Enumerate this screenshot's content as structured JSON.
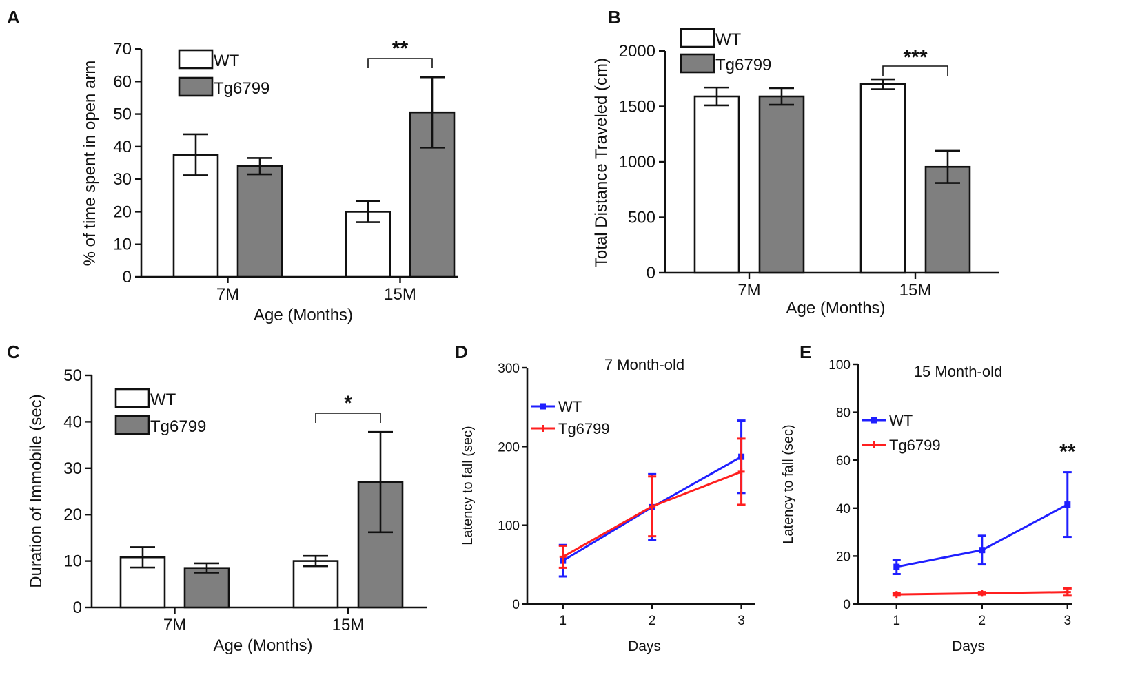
{
  "chart_data": [
    {
      "panel": "A",
      "type": "bar",
      "categories": [
        "7M",
        "15M"
      ],
      "series": [
        {
          "name": "WT",
          "values": [
            37.5,
            20
          ],
          "errors": [
            6.3,
            3.2
          ],
          "color": "#ffffff"
        },
        {
          "name": "Tg6799",
          "values": [
            34,
            50.5
          ],
          "errors": [
            2.5,
            10.8
          ],
          "color": "#7f7f7f"
        }
      ],
      "ylabel": "% of time spent in open arm",
      "xlabel": "Age (Months)",
      "ylim": [
        0,
        70
      ],
      "yticks": [
        0,
        10,
        20,
        30,
        40,
        50,
        60,
        70
      ],
      "significance": [
        {
          "category": "15M",
          "label": "**"
        }
      ]
    },
    {
      "panel": "B",
      "type": "bar",
      "categories": [
        "7M",
        "15M"
      ],
      "series": [
        {
          "name": "WT",
          "values": [
            1590,
            1700
          ],
          "errors": [
            80,
            45
          ],
          "color": "#ffffff"
        },
        {
          "name": "Tg6799",
          "values": [
            1590,
            955
          ],
          "errors": [
            75,
            145
          ],
          "color": "#7f7f7f"
        }
      ],
      "ylabel": "Total Distance Traveled (cm)",
      "xlabel": "Age (Months)",
      "ylim": [
        0,
        2000
      ],
      "yticks": [
        0,
        500,
        1000,
        1500,
        2000
      ],
      "significance": [
        {
          "category": "15M",
          "label": "***"
        }
      ]
    },
    {
      "panel": "C",
      "type": "bar",
      "categories": [
        "7M",
        "15M"
      ],
      "series": [
        {
          "name": "WT",
          "values": [
            10.8,
            10
          ],
          "errors": [
            2.2,
            1.1
          ],
          "color": "#ffffff"
        },
        {
          "name": "Tg6799",
          "values": [
            8.5,
            27
          ],
          "errors": [
            1,
            10.8
          ],
          "color": "#7f7f7f"
        }
      ],
      "ylabel": "Duration of Immobile (sec)",
      "xlabel": "Age (Months)",
      "ylim": [
        0,
        50
      ],
      "yticks": [
        0,
        10,
        20,
        30,
        40,
        50
      ],
      "significance": [
        {
          "category": "15M",
          "label": "*"
        }
      ]
    },
    {
      "panel": "D",
      "type": "line",
      "title": "7 Month-old",
      "x": [
        1,
        2,
        3
      ],
      "series": [
        {
          "name": "WT",
          "values": [
            55,
            123,
            187
          ],
          "errors": [
            20,
            42,
            46
          ],
          "color": "#1f1fff"
        },
        {
          "name": "Tg6799",
          "values": [
            60,
            124,
            168
          ],
          "errors": [
            14,
            38,
            42
          ],
          "color": "#ff1f1f"
        }
      ],
      "ylabel": "Latency to fall (sec)",
      "xlabel": "Days",
      "ylim": [
        0,
        300
      ],
      "yticks": [
        0,
        100,
        200,
        300
      ],
      "xticks": [
        1,
        2,
        3
      ],
      "xlim": [
        0.6,
        3.15
      ]
    },
    {
      "panel": "E",
      "type": "line",
      "title": "15 Month-old",
      "x": [
        1,
        2,
        3
      ],
      "series": [
        {
          "name": "WT",
          "values": [
            15.5,
            22.5,
            41.5
          ],
          "errors": [
            3,
            6,
            13.5
          ],
          "color": "#1f1fff"
        },
        {
          "name": "Tg6799",
          "values": [
            4,
            4.5,
            5
          ],
          "errors": [
            0.5,
            0.5,
            1.5
          ],
          "color": "#ff1f1f"
        }
      ],
      "ylabel": "Latency to fall (sec)",
      "xlabel": "Days",
      "ylim": [
        0,
        100
      ],
      "yticks": [
        0,
        20,
        40,
        60,
        80,
        100
      ],
      "xticks": [
        1,
        2,
        3
      ],
      "xlim": [
        0.55,
        3.05
      ],
      "significance": [
        {
          "x": 3,
          "label": "**"
        }
      ]
    }
  ]
}
